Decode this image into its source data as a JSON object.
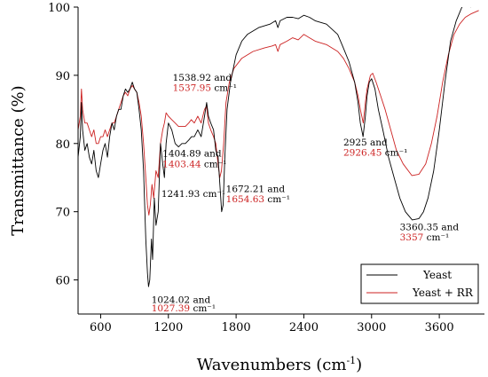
{
  "chart_data": {
    "type": "line",
    "title": "",
    "xlabel": "Wavenumbers (cm",
    "xlabel_sup": "-1",
    "xlabel_close": ")",
    "ylabel": "Transmittance (%)",
    "xlim": [
      400,
      4000
    ],
    "ylim": [
      55,
      100
    ],
    "x_ticks": [
      600,
      1200,
      1800,
      2400,
      3000,
      3600
    ],
    "y_ticks": [
      60,
      70,
      80,
      90,
      100
    ],
    "legend_position": "bottom-right",
    "series": [
      {
        "name": "Yeast",
        "color": "#000000",
        "points": [
          [
            400,
            78
          ],
          [
            420,
            81
          ],
          [
            430,
            86
          ],
          [
            440,
            82
          ],
          [
            460,
            79
          ],
          [
            480,
            80
          ],
          [
            500,
            78
          ],
          [
            520,
            77
          ],
          [
            540,
            79
          ],
          [
            560,
            76
          ],
          [
            580,
            75
          ],
          [
            600,
            77
          ],
          [
            620,
            79
          ],
          [
            640,
            80
          ],
          [
            660,
            78
          ],
          [
            680,
            81
          ],
          [
            700,
            83
          ],
          [
            720,
            82
          ],
          [
            740,
            84
          ],
          [
            760,
            85
          ],
          [
            780,
            85
          ],
          [
            800,
            87
          ],
          [
            820,
            88
          ],
          [
            840,
            87.5
          ],
          [
            860,
            88
          ],
          [
            880,
            89
          ],
          [
            900,
            88
          ],
          [
            920,
            87.5
          ],
          [
            940,
            85
          ],
          [
            960,
            82
          ],
          [
            980,
            76
          ],
          [
            1000,
            66
          ],
          [
            1015,
            61
          ],
          [
            1024,
            59
          ],
          [
            1035,
            60
          ],
          [
            1050,
            66
          ],
          [
            1060,
            63
          ],
          [
            1075,
            72
          ],
          [
            1090,
            68
          ],
          [
            1110,
            70
          ],
          [
            1130,
            80
          ],
          [
            1150,
            77
          ],
          [
            1165,
            75
          ],
          [
            1180,
            80
          ],
          [
            1200,
            83
          ],
          [
            1230,
            82
          ],
          [
            1260,
            80
          ],
          [
            1290,
            79.5
          ],
          [
            1320,
            80
          ],
          [
            1350,
            80
          ],
          [
            1380,
            80.5
          ],
          [
            1405,
            81
          ],
          [
            1430,
            81
          ],
          [
            1460,
            82
          ],
          [
            1490,
            81
          ],
          [
            1520,
            84
          ],
          [
            1539,
            86
          ],
          [
            1555,
            84
          ],
          [
            1575,
            83
          ],
          [
            1600,
            82
          ],
          [
            1620,
            79
          ],
          [
            1640,
            78
          ],
          [
            1660,
            73
          ],
          [
            1672,
            70
          ],
          [
            1685,
            71
          ],
          [
            1700,
            78
          ],
          [
            1720,
            85
          ],
          [
            1750,
            89
          ],
          [
            1800,
            93
          ],
          [
            1850,
            95
          ],
          [
            1900,
            96
          ],
          [
            2000,
            97
          ],
          [
            2100,
            97.5
          ],
          [
            2150,
            98
          ],
          [
            2170,
            97
          ],
          [
            2190,
            98
          ],
          [
            2250,
            98.5
          ],
          [
            2300,
            98.5
          ],
          [
            2350,
            98.3
          ],
          [
            2400,
            98.8
          ],
          [
            2450,
            98.5
          ],
          [
            2500,
            98
          ],
          [
            2600,
            97.5
          ],
          [
            2700,
            96
          ],
          [
            2750,
            94
          ],
          [
            2800,
            92
          ],
          [
            2850,
            89
          ],
          [
            2880,
            86
          ],
          [
            2900,
            83
          ],
          [
            2925,
            81
          ],
          [
            2945,
            84
          ],
          [
            2960,
            87
          ],
          [
            2980,
            89
          ],
          [
            3000,
            89.5
          ],
          [
            3030,
            88
          ],
          [
            3060,
            85
          ],
          [
            3100,
            82
          ],
          [
            3150,
            78
          ],
          [
            3200,
            75
          ],
          [
            3250,
            72
          ],
          [
            3300,
            70
          ],
          [
            3360,
            68.8
          ],
          [
            3420,
            69
          ],
          [
            3460,
            70
          ],
          [
            3500,
            72
          ],
          [
            3550,
            76
          ],
          [
            3600,
            82
          ],
          [
            3650,
            89
          ],
          [
            3700,
            95
          ],
          [
            3750,
            98
          ],
          [
            3800,
            100
          ],
          [
            3850,
            100.5
          ],
          [
            3880,
            100
          ]
        ]
      },
      {
        "name": "Yeast + RR",
        "color": "#cc2222",
        "points": [
          [
            400,
            82
          ],
          [
            420,
            84
          ],
          [
            430,
            88
          ],
          [
            440,
            85
          ],
          [
            460,
            83
          ],
          [
            480,
            83
          ],
          [
            500,
            82
          ],
          [
            520,
            81
          ],
          [
            540,
            82
          ],
          [
            560,
            80
          ],
          [
            580,
            80
          ],
          [
            600,
            81
          ],
          [
            620,
            81
          ],
          [
            640,
            82
          ],
          [
            660,
            81
          ],
          [
            680,
            82
          ],
          [
            700,
            83
          ],
          [
            720,
            83
          ],
          [
            740,
            84
          ],
          [
            760,
            85
          ],
          [
            780,
            86
          ],
          [
            800,
            87
          ],
          [
            820,
            87.5
          ],
          [
            840,
            87
          ],
          [
            860,
            88
          ],
          [
            880,
            88.5
          ],
          [
            900,
            88
          ],
          [
            920,
            87.5
          ],
          [
            940,
            86
          ],
          [
            960,
            84
          ],
          [
            980,
            80
          ],
          [
            1000,
            75
          ],
          [
            1015,
            71
          ],
          [
            1027,
            69.5
          ],
          [
            1040,
            71
          ],
          [
            1055,
            74
          ],
          [
            1070,
            72
          ],
          [
            1090,
            76
          ],
          [
            1110,
            75
          ],
          [
            1130,
            80
          ],
          [
            1150,
            82
          ],
          [
            1165,
            83
          ],
          [
            1180,
            84.5
          ],
          [
            1200,
            84
          ],
          [
            1230,
            83.5
          ],
          [
            1260,
            83
          ],
          [
            1290,
            82.5
          ],
          [
            1320,
            82.5
          ],
          [
            1350,
            82.5
          ],
          [
            1380,
            83
          ],
          [
            1403,
            83.5
          ],
          [
            1430,
            83
          ],
          [
            1460,
            84
          ],
          [
            1490,
            83
          ],
          [
            1520,
            85
          ],
          [
            1538,
            85.5
          ],
          [
            1555,
            83
          ],
          [
            1575,
            82
          ],
          [
            1600,
            81
          ],
          [
            1620,
            80
          ],
          [
            1640,
            77
          ],
          [
            1655,
            75
          ],
          [
            1670,
            76
          ],
          [
            1690,
            80
          ],
          [
            1710,
            86
          ],
          [
            1740,
            89
          ],
          [
            1780,
            91
          ],
          [
            1850,
            92.5
          ],
          [
            1950,
            93.5
          ],
          [
            2050,
            94
          ],
          [
            2120,
            94.3
          ],
          [
            2150,
            94.5
          ],
          [
            2170,
            93.5
          ],
          [
            2190,
            94.5
          ],
          [
            2250,
            95
          ],
          [
            2300,
            95.5
          ],
          [
            2350,
            95.2
          ],
          [
            2400,
            96
          ],
          [
            2450,
            95.5
          ],
          [
            2500,
            95
          ],
          [
            2600,
            94.5
          ],
          [
            2700,
            93.5
          ],
          [
            2750,
            92.5
          ],
          [
            2800,
            91
          ],
          [
            2850,
            89
          ],
          [
            2880,
            87
          ],
          [
            2900,
            85
          ],
          [
            2926,
            83
          ],
          [
            2945,
            86
          ],
          [
            2960,
            88
          ],
          [
            2990,
            90
          ],
          [
            3010,
            90.3
          ],
          [
            3040,
            89
          ],
          [
            3080,
            87
          ],
          [
            3120,
            85
          ],
          [
            3170,
            82
          ],
          [
            3220,
            79
          ],
          [
            3280,
            77
          ],
          [
            3357,
            75.3
          ],
          [
            3420,
            75.5
          ],
          [
            3480,
            77
          ],
          [
            3530,
            80
          ],
          [
            3580,
            84
          ],
          [
            3630,
            89
          ],
          [
            3680,
            93
          ],
          [
            3730,
            96
          ],
          [
            3780,
            97.5
          ],
          [
            3830,
            98.5
          ],
          [
            3880,
            99
          ],
          [
            3950,
            99.5
          ]
        ]
      }
    ],
    "annotations": [
      {
        "x": 1050,
        "y": 56.6,
        "parts": [
          {
            "text": "1024.02 and",
            "color": "#000000"
          }
        ]
      },
      {
        "x": 1050,
        "y": 55.4,
        "parts": [
          {
            "text": "1027.39",
            "color": "#cc2222"
          },
          {
            "text": " cm⁻¹",
            "color": "#000000"
          }
        ]
      },
      {
        "x": 1138,
        "y": 72.2,
        "parts": [
          {
            "text": "1241.93 cm⁻¹",
            "color": "#000000"
          }
        ]
      },
      {
        "x": 1148,
        "y": 78.1,
        "parts": [
          {
            "text": "1404.89 and",
            "color": "#000000"
          }
        ]
      },
      {
        "x": 1148,
        "y": 76.5,
        "parts": [
          {
            "text": "1403.44",
            "color": "#cc2222"
          },
          {
            "text": " cm⁻¹",
            "color": "#000000"
          }
        ]
      },
      {
        "x": 1238,
        "y": 89.2,
        "parts": [
          {
            "text": "1538.92 and",
            "color": "#000000"
          }
        ]
      },
      {
        "x": 1238,
        "y": 87.7,
        "parts": [
          {
            "text": "1537.95",
            "color": "#cc2222"
          },
          {
            "text": " cm⁻¹",
            "color": "#000000"
          }
        ]
      },
      {
        "x": 1710,
        "y": 72.9,
        "parts": [
          {
            "text": "1672.21 and",
            "color": "#000000"
          }
        ]
      },
      {
        "x": 1710,
        "y": 71.4,
        "parts": [
          {
            "text": "1654.63",
            "color": "#cc2222"
          },
          {
            "text": " cm⁻¹",
            "color": "#000000"
          }
        ]
      },
      {
        "x": 2750,
        "y": 79.7,
        "parts": [
          {
            "text": "2925 and",
            "color": "#000000"
          }
        ]
      },
      {
        "x": 2750,
        "y": 78.2,
        "parts": [
          {
            "text": "2926.45",
            "color": "#cc2222"
          },
          {
            "text": " cm⁻¹",
            "color": "#000000"
          }
        ]
      },
      {
        "x": 3250,
        "y": 67.3,
        "parts": [
          {
            "text": "3360.35 and",
            "color": "#000000"
          }
        ]
      },
      {
        "x": 3250,
        "y": 65.8,
        "parts": [
          {
            "text": "3357",
            "color": "#cc2222"
          },
          {
            "text": " cm⁻¹",
            "color": "#000000"
          }
        ]
      }
    ]
  }
}
